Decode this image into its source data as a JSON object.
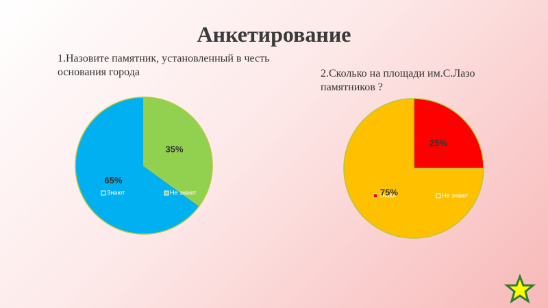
{
  "title": "Анкетирование",
  "chart_data": [
    {
      "type": "pie",
      "title": "1.Назовите памятник,  установленный в честь основания города",
      "categories": [
        "Знают",
        "Не знают"
      ],
      "values": [
        65,
        35
      ],
      "value_labels": [
        "65%",
        "35%"
      ],
      "colors": [
        "#00b0f0",
        "#92d050"
      ],
      "direction": "counterclockwise"
    },
    {
      "type": "pie",
      "title": "2.Сколько на площади им.С.Лазо памятников ?",
      "categories": [
        "Знают",
        "Не знают"
      ],
      "values": [
        25,
        75
      ],
      "value_labels": [
        "25%",
        "75%"
      ],
      "colors": [
        "#ff0000",
        "#ffc000"
      ],
      "direction": "clockwise"
    }
  ]
}
